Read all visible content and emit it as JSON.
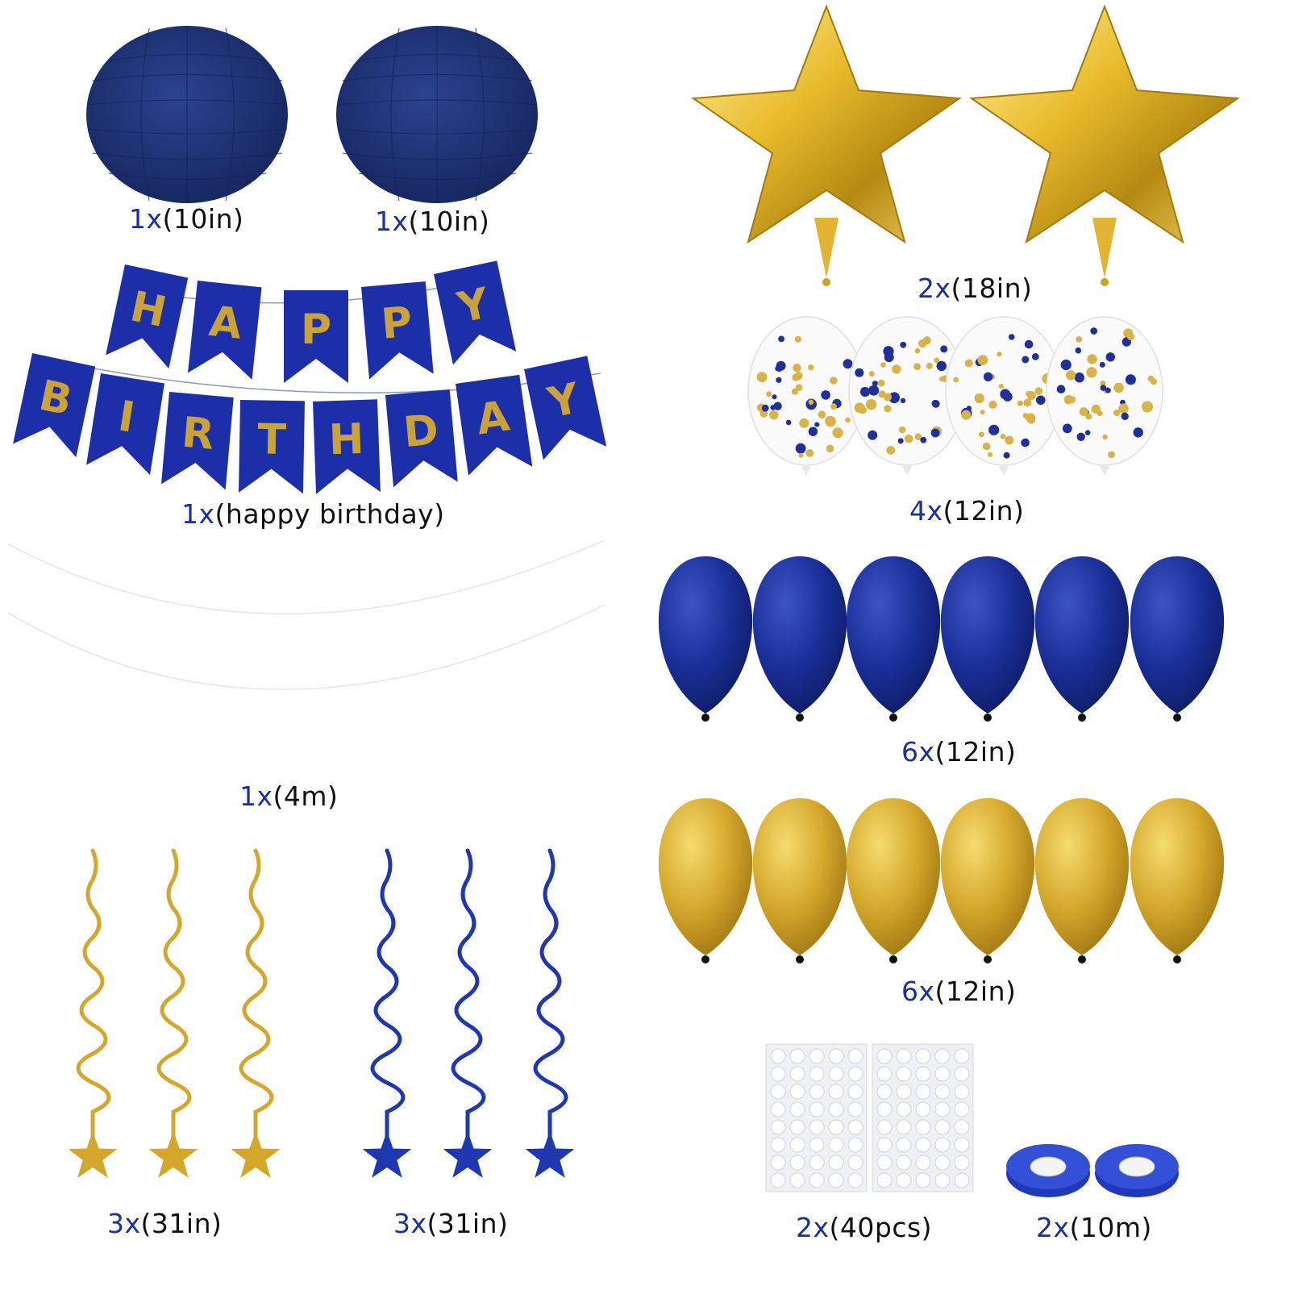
{
  "colors": {
    "navy": "#1c2e78",
    "royal_blue": "#1b2fa6",
    "gold": "#d4a72c",
    "gold_light": "#f3d45a",
    "caption_blue": "#1a2fa0",
    "caption_text": "#111111"
  },
  "items": [
    {
      "qty": "1x",
      "size": "(10in)"
    },
    {
      "qty": "1x",
      "size": "(10in)"
    },
    {
      "qty": "2x",
      "size": "(18in)"
    },
    {
      "qty": "1x",
      "size": "(happy birthday)"
    },
    {
      "qty": "4x",
      "size": "(12in)"
    },
    {
      "qty": "1x",
      "size": "(4m)"
    },
    {
      "qty": "6x",
      "size": "(12in)"
    },
    {
      "qty": "6x",
      "size": "(12in)"
    },
    {
      "qty": "3x",
      "size": "(31in)"
    },
    {
      "qty": "3x",
      "size": "(31in)"
    },
    {
      "qty": "2x",
      "size": "(40pcs)"
    },
    {
      "qty": "2x",
      "size": "(10m)"
    }
  ],
  "banner": {
    "row1": [
      "H",
      "A",
      "P",
      "P",
      "Y"
    ],
    "row2": [
      "B",
      "I",
      "R",
      "T",
      "H",
      "D",
      "A",
      "Y"
    ]
  }
}
